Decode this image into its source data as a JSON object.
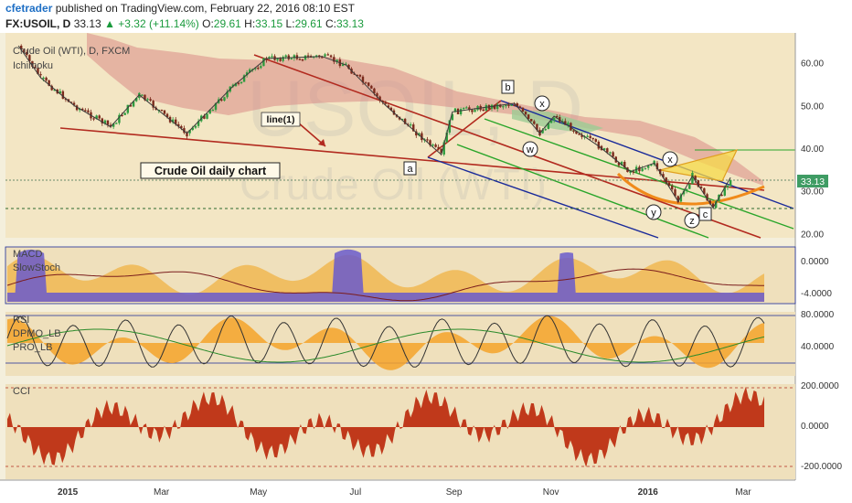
{
  "header": {
    "author": "cfetrader",
    "published_text": " published on TradingView.com, February 22, 2016 08:10 EST",
    "symbol": "FX:USOIL, D",
    "last": "33.13",
    "change": "▲ +3.32 (+11.14%)",
    "open_label": "O:",
    "open": "29.61",
    "high_label": "H:",
    "high": "33.15",
    "low_label": "L:",
    "low": "29.61",
    "close_label": "C:",
    "close": "33.13"
  },
  "colors": {
    "background": "#f4efdc",
    "panel_bg": "#efe0bc",
    "bull_candle": "#2e9b3e",
    "bear_candle": "#7a2a1c",
    "cloud_red": "#d98b86",
    "cloud_green": "#9ccc95",
    "accent_blue": "#1e6fc5",
    "price_tag": "#3f9c64"
  },
  "chart_data": [
    {
      "type": "line",
      "title": "Crude Oil (WTI), D, FXCM",
      "indicator": "Ichimoku",
      "watermark_symbol": "USOIL, D",
      "watermark_name": "Crude Oil (WTI)",
      "annotation_box": "Crude Oil daily chart",
      "trendline_label": "line(1)",
      "wave_labels": [
        "a",
        "b",
        "c",
        "x",
        "w",
        "x",
        "y",
        "z"
      ],
      "x_labels": [
        "2015",
        "Mar",
        "May",
        "Jul",
        "Sep",
        "Nov",
        "2016",
        "Mar"
      ],
      "y_ticks": [
        "60.00",
        "50.00",
        "40.00",
        "30.00",
        "20.00"
      ],
      "ylim": [
        19,
        67
      ],
      "last_price": "33.13",
      "close_series_approx": [
        {
          "date": "2014-12-01",
          "close": 64.0
        },
        {
          "date": "2014-12-15",
          "close": 56.5
        },
        {
          "date": "2015-01-05",
          "close": 50.0
        },
        {
          "date": "2015-01-28",
          "close": 45.0
        },
        {
          "date": "2015-02-15",
          "close": 52.5
        },
        {
          "date": "2015-03-17",
          "close": 43.5
        },
        {
          "date": "2015-04-15",
          "close": 54.5
        },
        {
          "date": "2015-05-06",
          "close": 61.0
        },
        {
          "date": "2015-06-10",
          "close": 61.5
        },
        {
          "date": "2015-06-25",
          "close": 59.5
        },
        {
          "date": "2015-07-20",
          "close": 50.0
        },
        {
          "date": "2015-08-24",
          "close": 38.5
        },
        {
          "date": "2015-08-31",
          "close": 48.5
        },
        {
          "date": "2015-10-09",
          "close": 50.5
        },
        {
          "date": "2015-10-25",
          "close": 43.5
        },
        {
          "date": "2015-11-03",
          "close": 47.5
        },
        {
          "date": "2015-12-01",
          "close": 40.5
        },
        {
          "date": "2015-12-21",
          "close": 34.5
        },
        {
          "date": "2016-01-05",
          "close": 36.5
        },
        {
          "date": "2016-01-20",
          "close": 27.5
        },
        {
          "date": "2016-01-29",
          "close": 33.5
        },
        {
          "date": "2016-02-11",
          "close": 26.0
        },
        {
          "date": "2016-02-22",
          "close": 33.13
        }
      ]
    },
    {
      "type": "area",
      "title": "MACD",
      "subtitle": "SlowStoch",
      "y_ticks": [
        "0.0000",
        "-4.0000"
      ]
    },
    {
      "type": "line",
      "title": "RSI",
      "series_labels": [
        "DPMO_LB",
        "PRO_LB"
      ],
      "y_ticks": [
        "80.0000",
        "40.0000"
      ]
    },
    {
      "type": "area",
      "title": "CCI",
      "y_ticks": [
        "200.0000",
        "0.0000",
        "-200.0000"
      ]
    }
  ]
}
